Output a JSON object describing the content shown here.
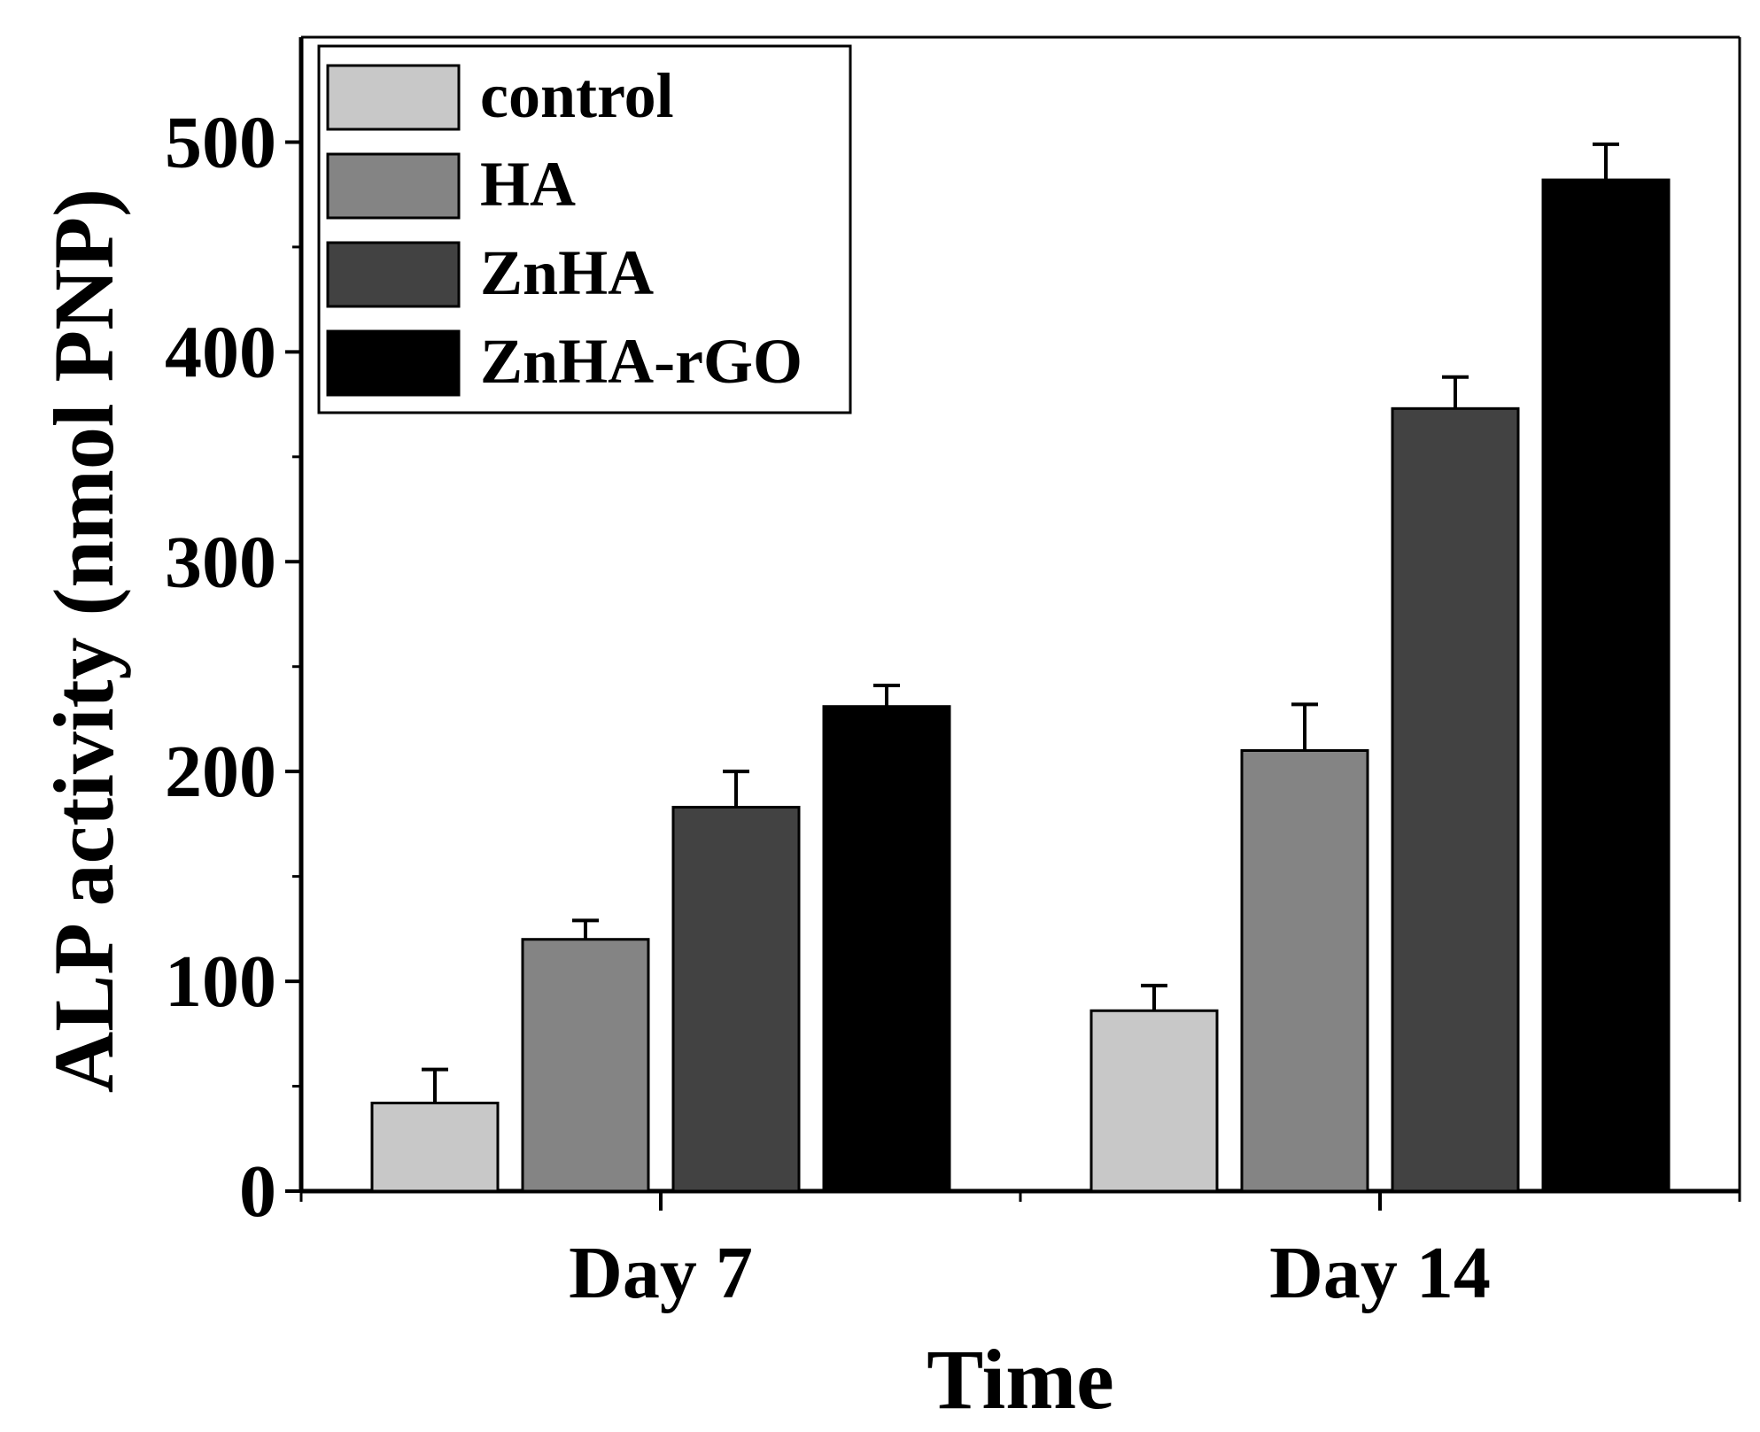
{
  "chart_data": {
    "type": "bar",
    "title": "",
    "xlabel": "Time",
    "ylabel": "ALP activity (nmol PNP)",
    "categories": [
      "Day 7",
      "Day 14"
    ],
    "ylim": [
      0,
      550
    ],
    "yticks": [
      0,
      100,
      200,
      300,
      400,
      500
    ],
    "ytick_labels": [
      "0",
      "100",
      "200",
      "300",
      "400",
      "500"
    ],
    "grid": false,
    "legend_position": "top-left",
    "series": [
      {
        "name": "control",
        "values": [
          42,
          86
        ],
        "errors": [
          16,
          12
        ],
        "color": "#c8c8c8"
      },
      {
        "name": "HA",
        "values": [
          120,
          210
        ],
        "errors": [
          9,
          22
        ],
        "color": "#848484"
      },
      {
        "name": "ZnHA",
        "values": [
          183,
          373
        ],
        "errors": [
          17,
          15
        ],
        "color": "#424242"
      },
      {
        "name": "ZnHA-rGO",
        "values": [
          231,
          482
        ],
        "errors": [
          10,
          17
        ],
        "color": "#000000"
      }
    ]
  }
}
